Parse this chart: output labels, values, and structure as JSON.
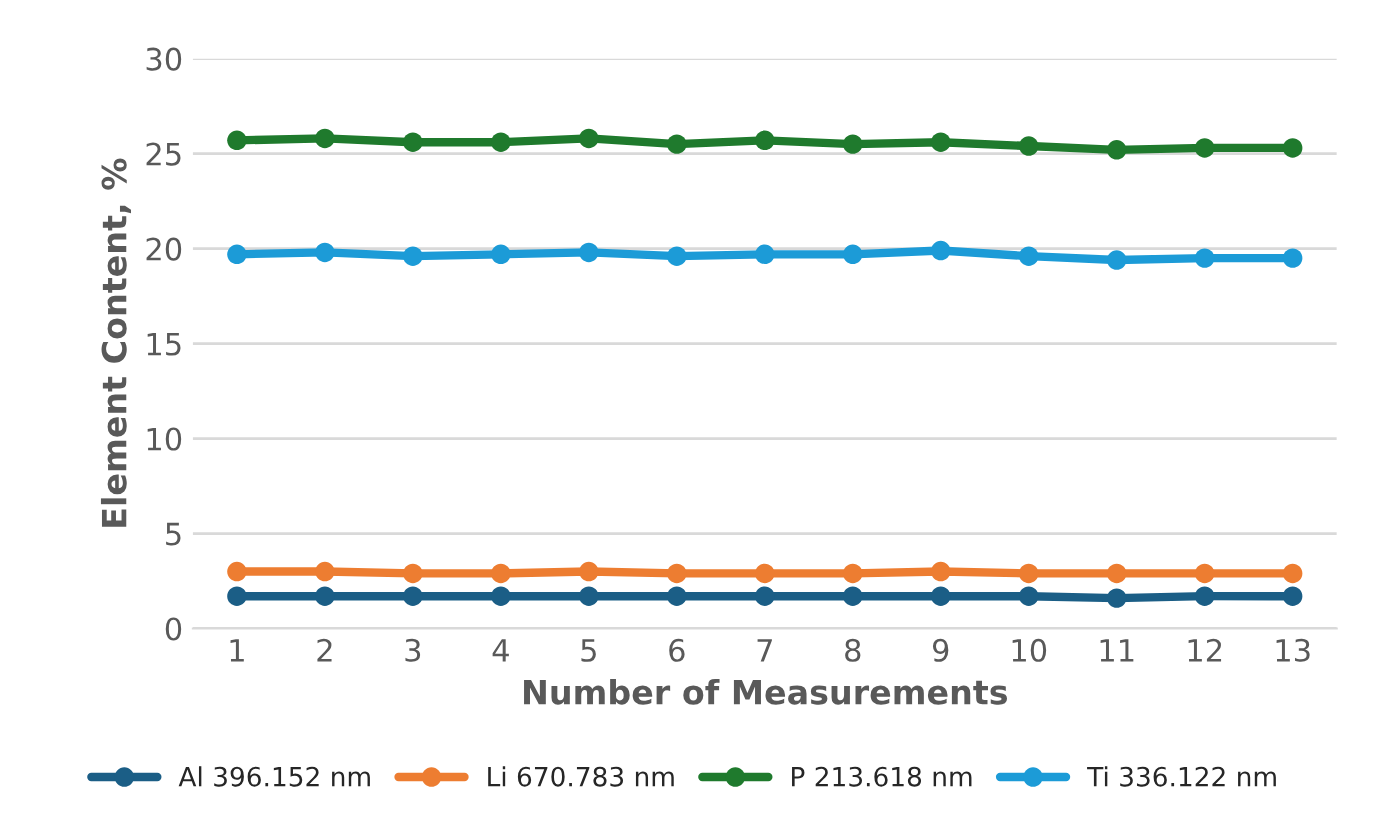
{
  "chart_data": {
    "type": "line",
    "xlabel": "Number of Measurements",
    "ylabel": "Element Content, %",
    "categories": [
      "1",
      "2",
      "3",
      "4",
      "5",
      "6",
      "7",
      "8",
      "9",
      "10",
      "11",
      "12",
      "13"
    ],
    "series": [
      {
        "name": "Al 396.152 nm",
        "color": "#1b5e86",
        "values": [
          1.7,
          1.7,
          1.7,
          1.7,
          1.7,
          1.7,
          1.7,
          1.7,
          1.7,
          1.7,
          1.6,
          1.7,
          1.7
        ]
      },
      {
        "name": "Li 670.783 nm",
        "color": "#ed7d31",
        "values": [
          3.0,
          3.0,
          2.9,
          2.9,
          3.0,
          2.9,
          2.9,
          2.9,
          3.0,
          2.9,
          2.9,
          2.9,
          2.9
        ]
      },
      {
        "name": "P 213.618 nm",
        "color": "#1f7a2d",
        "values": [
          25.7,
          25.8,
          25.6,
          25.6,
          25.8,
          25.5,
          25.7,
          25.5,
          25.6,
          25.4,
          25.2,
          25.3,
          25.3
        ]
      },
      {
        "name": "Ti 336.122 nm",
        "color": "#1c9bd7",
        "values": [
          19.7,
          19.8,
          19.6,
          19.7,
          19.8,
          19.6,
          19.7,
          19.7,
          19.9,
          19.6,
          19.4,
          19.5,
          19.5
        ]
      }
    ],
    "ylim": [
      0,
      30
    ],
    "yticks": [
      0,
      5,
      10,
      15,
      20,
      25,
      30
    ],
    "grid": "y",
    "legend": "bottom",
    "marker": "circle",
    "line_style": "solid"
  }
}
